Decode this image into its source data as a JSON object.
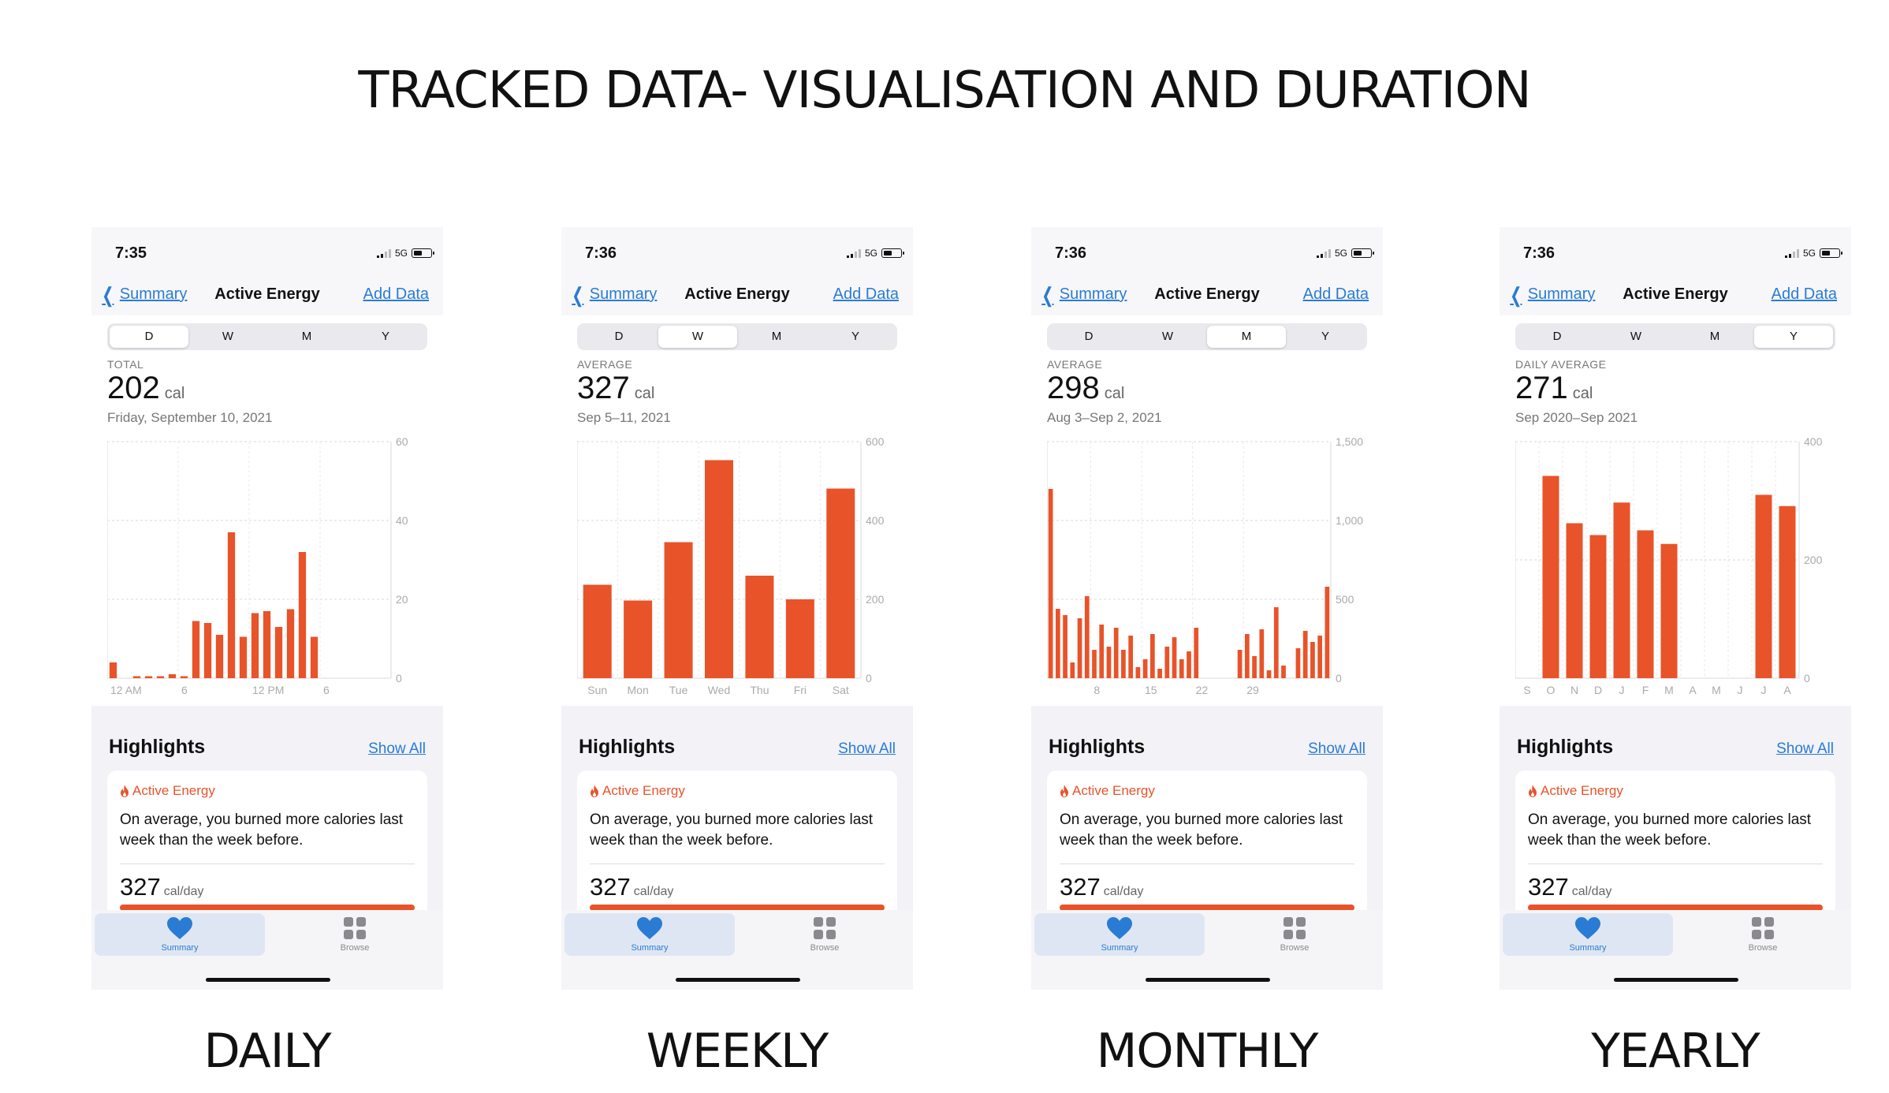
{
  "title": "TRACKED DATA- VISUALISATION AND DURATION",
  "colors": {
    "accent": "#e8532a",
    "link": "#2a7bd4",
    "background": "#ffffff"
  },
  "icons": {
    "back": "chevron-left-icon",
    "flame": "flame-icon",
    "summary": "heart-icon",
    "browse": "grid-icon"
  },
  "phones": [
    {
      "caption": "DAILY",
      "status": {
        "time": "7:35",
        "network": "5G"
      },
      "nav": {
        "back": "Summary",
        "title": "Active Energy",
        "action": "Add Data"
      },
      "segments": [
        "D",
        "W",
        "M",
        "Y"
      ],
      "active_segment": "D",
      "stat": {
        "label": "TOTAL",
        "value": "202",
        "unit": "cal",
        "date": "Friday, September 10, 2021"
      },
      "highlights": {
        "title": "Highlights",
        "show_all": "Show All",
        "category": "Active Energy",
        "text": "On average, you burned more calories last week than the week before.",
        "value": "327",
        "unit": "cal/day"
      },
      "tabs": {
        "summary": "Summary",
        "browse": "Browse"
      }
    },
    {
      "caption": "WEEKLY",
      "status": {
        "time": "7:36",
        "network": "5G"
      },
      "nav": {
        "back": "Summary",
        "title": "Active Energy",
        "action": "Add Data"
      },
      "segments": [
        "D",
        "W",
        "M",
        "Y"
      ],
      "active_segment": "W",
      "stat": {
        "label": "AVERAGE",
        "value": "327",
        "unit": "cal",
        "date": "Sep 5–11, 2021"
      },
      "highlights": {
        "title": "Highlights",
        "show_all": "Show All",
        "category": "Active Energy",
        "text": "On average, you burned more calories last week than the week before.",
        "value": "327",
        "unit": "cal/day"
      },
      "tabs": {
        "summary": "Summary",
        "browse": "Browse"
      }
    },
    {
      "caption": "MONTHLY",
      "status": {
        "time": "7:36",
        "network": "5G"
      },
      "nav": {
        "back": "Summary",
        "title": "Active Energy",
        "action": "Add Data"
      },
      "segments": [
        "D",
        "W",
        "M",
        "Y"
      ],
      "active_segment": "M",
      "stat": {
        "label": "AVERAGE",
        "value": "298",
        "unit": "cal",
        "date": "Aug 3–Sep 2, 2021"
      },
      "highlights": {
        "title": "Highlights",
        "show_all": "Show All",
        "category": "Active Energy",
        "text": "On average, you burned more calories last week than the week before.",
        "value": "327",
        "unit": "cal/day"
      },
      "tabs": {
        "summary": "Summary",
        "browse": "Browse"
      }
    },
    {
      "caption": "YEARLY",
      "status": {
        "time": "7:36",
        "network": "5G"
      },
      "nav": {
        "back": "Summary",
        "title": "Active Energy",
        "action": "Add Data"
      },
      "segments": [
        "D",
        "W",
        "M",
        "Y"
      ],
      "active_segment": "Y",
      "stat": {
        "label": "DAILY AVERAGE",
        "value": "271",
        "unit": "cal",
        "date": "Sep 2020–Sep 2021"
      },
      "highlights": {
        "title": "Highlights",
        "show_all": "Show All",
        "category": "Active Energy",
        "text": "On average, you burned more calories last week than the week before.",
        "value": "327",
        "unit": "cal/day"
      },
      "tabs": {
        "summary": "Summary",
        "browse": "Browse"
      }
    }
  ],
  "chart_data": [
    {
      "type": "bar",
      "values": [
        4,
        0,
        0.5,
        0.5,
        0.5,
        1,
        0.5,
        14.5,
        14,
        11,
        37,
        10.5,
        16.5,
        17,
        13,
        17.5,
        32,
        10.5,
        0,
        0,
        0,
        0,
        0,
        0
      ],
      "x_tick_labels": [
        {
          "index": 0,
          "label": "12 AM"
        },
        {
          "index": 6,
          "label": "6"
        },
        {
          "index": 12,
          "label": "12 PM"
        },
        {
          "index": 18,
          "label": "6"
        }
      ],
      "y_ticks": [
        0,
        20,
        40,
        60
      ],
      "ylim": [
        0,
        60
      ],
      "grid": true
    },
    {
      "type": "bar",
      "categories": [
        "Sun",
        "Mon",
        "Tue",
        "Wed",
        "Thu",
        "Fri",
        "Sat"
      ],
      "values": [
        237,
        197,
        345,
        553,
        260,
        200,
        481
      ],
      "x_tick_labels": [
        {
          "index": 0,
          "label": "Sun"
        },
        {
          "index": 1,
          "label": "Mon"
        },
        {
          "index": 2,
          "label": "Tue"
        },
        {
          "index": 3,
          "label": "Wed"
        },
        {
          "index": 4,
          "label": "Thu"
        },
        {
          "index": 5,
          "label": "Fri"
        },
        {
          "index": 6,
          "label": "Sat"
        }
      ],
      "y_ticks": [
        0,
        200,
        400,
        600
      ],
      "ylim": [
        0,
        600
      ],
      "grid": true
    },
    {
      "type": "bar",
      "values": [
        1200,
        440,
        400,
        100,
        380,
        520,
        180,
        340,
        200,
        320,
        180,
        270,
        70,
        120,
        280,
        60,
        200,
        260,
        120,
        170,
        320,
        0,
        0,
        0,
        0,
        0,
        180,
        280,
        140,
        310,
        50,
        450,
        80,
        0,
        190,
        300,
        230,
        270,
        580
      ],
      "x_tick_labels": [
        {
          "index": 6,
          "label": "8"
        },
        {
          "index": 13,
          "label": "15"
        },
        {
          "index": 20,
          "label": "22"
        },
        {
          "index": 27,
          "label": "29"
        }
      ],
      "y_ticks": [
        0,
        500,
        "1,000",
        "1,500"
      ],
      "ylim": [
        0,
        1500
      ],
      "grid": true
    },
    {
      "type": "bar",
      "categories": [
        "S",
        "O",
        "N",
        "D",
        "J",
        "F",
        "M",
        "A",
        "M",
        "J",
        "J",
        "A"
      ],
      "values": [
        0,
        342,
        262,
        242,
        297,
        250,
        227,
        0,
        0,
        0,
        310,
        291
      ],
      "x_tick_labels": [
        {
          "index": 0,
          "label": "S"
        },
        {
          "index": 1,
          "label": "O"
        },
        {
          "index": 2,
          "label": "N"
        },
        {
          "index": 3,
          "label": "D"
        },
        {
          "index": 4,
          "label": "J"
        },
        {
          "index": 5,
          "label": "F"
        },
        {
          "index": 6,
          "label": "M"
        },
        {
          "index": 7,
          "label": "A"
        },
        {
          "index": 8,
          "label": "M"
        },
        {
          "index": 9,
          "label": "J"
        },
        {
          "index": 10,
          "label": "J"
        },
        {
          "index": 11,
          "label": "A"
        }
      ],
      "y_ticks": [
        0,
        200,
        400
      ],
      "ylim": [
        0,
        400
      ],
      "grid": true
    }
  ]
}
